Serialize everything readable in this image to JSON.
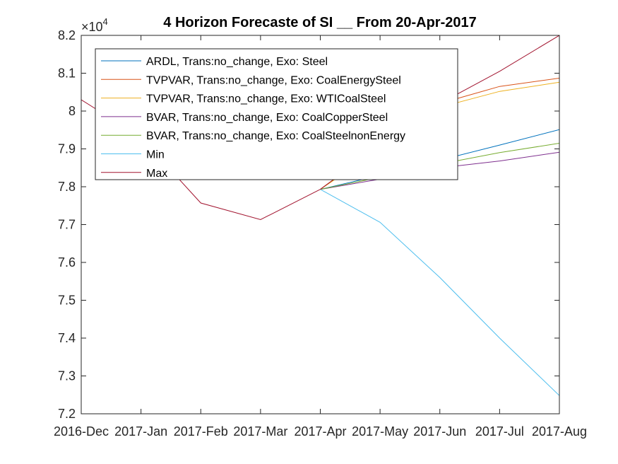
{
  "chart_data": {
    "type": "line",
    "title": "4 Horizon Forecaste of SI __ From 20-Apr-2017",
    "exponent_label": "×10",
    "exponent_power": "4",
    "xlabel": "",
    "ylabel": "",
    "categories": [
      "2016-Dec",
      "2017-Jan",
      "2017-Feb",
      "2017-Mar",
      "2017-Apr",
      "2017-May",
      "2017-Jun",
      "2017-Jul",
      "2017-Aug"
    ],
    "ylim": [
      7.2,
      8.2
    ],
    "yticks": [
      "7.2",
      "7.3",
      "7.4",
      "7.5",
      "7.6",
      "7.7",
      "7.8",
      "7.9",
      "8",
      "8.1",
      "8.2"
    ],
    "grid": false,
    "legend_position": "top-left",
    "history": {
      "x": [
        0,
        1,
        2,
        3,
        4
      ],
      "values": [
        8.03,
        7.93,
        7.757,
        7.713,
        7.793
      ]
    },
    "series": [
      {
        "name": "ARDL, Trans:no_change, Exo: Steel",
        "color": "#0072BD",
        "x": [
          4,
          5,
          6,
          7,
          8
        ],
        "values": [
          7.793,
          7.83,
          7.87,
          7.91,
          7.951
        ]
      },
      {
        "name": "TVPVAR, Trans:no_change, Exo: CoalEnergySteel",
        "color": "#D95319",
        "x": [
          4,
          5,
          6,
          7,
          8
        ],
        "values": [
          7.793,
          7.91,
          8.02,
          8.065,
          8.087
        ]
      },
      {
        "name": "TVPVAR, Trans:no_change, Exo: WTICoalSteel",
        "color": "#EDB120",
        "x": [
          4,
          5,
          6,
          7,
          8
        ],
        "values": [
          7.793,
          7.9,
          8.01,
          8.052,
          8.076
        ]
      },
      {
        "name": "BVAR, Trans:no_change, Exo: CoalCopperSteel",
        "color": "#7E2F8E",
        "x": [
          4,
          5,
          6,
          7,
          8
        ],
        "values": [
          7.793,
          7.82,
          7.85,
          7.868,
          7.891
        ]
      },
      {
        "name": "BVAR, Trans:no_change, Exo: CoalSteelnonEnergy",
        "color": "#77AC30",
        "x": [
          4,
          5,
          6,
          7,
          8
        ],
        "values": [
          7.793,
          7.825,
          7.86,
          7.89,
          7.915
        ]
      },
      {
        "name": "Min",
        "color": "#4DBEEE",
        "x": [
          4,
          5,
          6,
          7,
          8
        ],
        "values": [
          7.793,
          7.706,
          7.56,
          7.4,
          7.248
        ]
      },
      {
        "name": "Max",
        "color": "#A2142F",
        "x": [
          4,
          5,
          6,
          7,
          8
        ],
        "values": [
          7.793,
          7.91,
          8.02,
          8.105,
          8.2
        ]
      }
    ]
  }
}
